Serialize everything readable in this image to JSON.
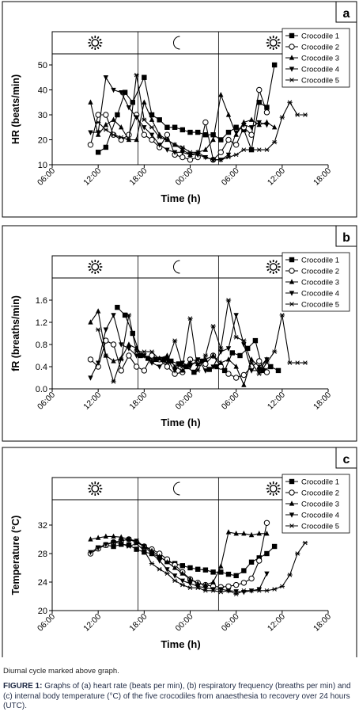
{
  "caption": {
    "note": "Diurnal cycle marked above graph.",
    "label": "FIGURE 1:",
    "text": "Graphs of (a) heart rate (beats per min), (b) respiratory frequency (breaths per min) and (c) internal body temperature (°C) of the five crocodiles from anaesthesia to recovery over 24 hours (UTC)."
  },
  "chart_data": [
    {
      "type": "line",
      "panel_label": "a",
      "xlabel": "Time (h)",
      "ylabel": "HR (beats/min)",
      "x_ticks": [
        "06:00",
        "12:00",
        "18:00",
        "00:00",
        "06:00",
        "12:00",
        "18:00"
      ],
      "x_range_hours": [
        6,
        42
      ],
      "ylim": [
        10,
        50
      ],
      "y_ticks": [
        10,
        20,
        30,
        40,
        50
      ],
      "y_tick_labels": [
        "10",
        "20",
        "30",
        "40",
        "50"
      ],
      "diurnal": [
        "sun-icon",
        "moon-icon",
        "sun-icon"
      ],
      "diurnal_bounds_hours": [
        17.2,
        27.7
      ],
      "legend_position": "top-right",
      "series": [
        {
          "name": "Crocodile 1",
          "marker": "square",
          "x": [
            12,
            13,
            14.5,
            15.5,
            16.5,
            18,
            19,
            20,
            21,
            22,
            23,
            24,
            25,
            26,
            27,
            28,
            29,
            30,
            31,
            32,
            33,
            34,
            35
          ],
          "y": [
            15,
            17,
            30,
            39,
            35,
            45,
            30,
            28,
            25,
            25,
            24,
            23,
            23,
            22,
            22,
            20,
            23,
            25,
            24,
            16,
            35,
            33,
            50
          ]
        },
        {
          "name": "Crocodile 2",
          "marker": "circle",
          "x": [
            11,
            12,
            13,
            14,
            15,
            16,
            17,
            18,
            19,
            20,
            21,
            22,
            23,
            24,
            25,
            26,
            27,
            28,
            29,
            30,
            31,
            32,
            33,
            34
          ],
          "y": [
            18,
            30,
            30,
            22,
            20,
            22,
            30,
            22,
            20,
            17,
            22,
            14,
            13,
            12,
            13,
            27,
            12,
            15,
            20,
            18,
            25,
            22,
            40,
            31
          ]
        },
        {
          "name": "Crocodile 3",
          "marker": "triangle",
          "x": [
            11,
            12,
            13,
            14,
            15,
            16,
            17,
            18,
            19,
            20,
            21,
            22,
            23,
            24,
            25,
            26,
            27,
            28,
            29,
            30,
            31,
            32,
            33,
            34,
            35
          ],
          "y": [
            35,
            22,
            26,
            28,
            25,
            20,
            20,
            35,
            28,
            22,
            20,
            18,
            16,
            14,
            15,
            16,
            20,
            38,
            30,
            22,
            27,
            28,
            26,
            27,
            25
          ]
        },
        {
          "name": "Crocodile 4",
          "marker": "triangle-down",
          "x": [
            11,
            12,
            13,
            14,
            15,
            16,
            17,
            18,
            19,
            20,
            21,
            22,
            23,
            24,
            25,
            26,
            27,
            28,
            29,
            30,
            31,
            32,
            33,
            34
          ],
          "y": [
            23,
            23,
            45,
            40,
            39,
            33,
            29,
            25,
            22,
            18,
            16,
            15,
            15,
            14,
            14,
            13,
            12,
            12,
            14,
            23,
            26,
            25,
            27,
            26
          ]
        },
        {
          "name": "Crocodile 5",
          "marker": "star",
          "x": [
            12,
            13,
            14,
            15,
            16,
            17,
            18,
            19,
            20,
            21,
            22,
            23,
            24,
            25,
            26,
            27,
            28,
            29,
            30,
            31,
            32,
            33,
            34,
            35,
            36,
            37,
            38,
            39
          ],
          "y": [
            27,
            24,
            22,
            21,
            20,
            46,
            28,
            25,
            21,
            20,
            18,
            17,
            15,
            15,
            13,
            12,
            12,
            13,
            14,
            16,
            16,
            16,
            16,
            19,
            29,
            35,
            30,
            30
          ]
        }
      ]
    },
    {
      "type": "line",
      "panel_label": "b",
      "xlabel": "Time (h)",
      "ylabel": "fR (breaths/min)",
      "x_ticks": [
        "06:00",
        "12:00",
        "18:00",
        "00:00",
        "06:00",
        "12:00",
        "18:00"
      ],
      "x_range_hours": [
        6,
        42
      ],
      "ylim": [
        0,
        1.8
      ],
      "y_ticks": [
        0,
        0.4,
        0.8,
        1.2,
        1.6
      ],
      "y_tick_labels": [
        "0.0",
        "0.4",
        "0.8",
        "1.2",
        "1.6"
      ],
      "diurnal": [
        "sun-icon",
        "moon-icon",
        "sun-icon"
      ],
      "diurnal_bounds_hours": [
        17.2,
        27.7
      ],
      "legend_position": "top-right",
      "series": [
        {
          "name": "Crocodile 1",
          "marker": "square",
          "x": [
            14.5,
            15.5,
            16.5,
            17.5,
            18.5,
            19.5,
            20.5,
            21.5,
            22.5,
            23.5,
            24.5,
            25.5,
            26.5,
            27.5,
            28.5,
            29.5,
            30.5,
            31.5,
            32.5,
            33.5,
            34.5,
            35.5
          ],
          "y": [
            1.47,
            1.33,
            1.0,
            0.6,
            0.55,
            0.53,
            0.53,
            0.5,
            0.45,
            0.4,
            0.3,
            0.5,
            0.35,
            0.4,
            0.33,
            0.65,
            0.6,
            0.73,
            0.87,
            0.33,
            0.4,
            0.33
          ]
        },
        {
          "name": "Crocodile 2",
          "marker": "circle",
          "x": [
            11,
            12,
            13,
            14,
            15,
            16,
            17,
            18,
            19,
            20,
            21,
            22,
            23,
            24,
            25,
            26,
            27,
            28,
            29,
            30,
            31,
            32,
            33,
            34
          ],
          "y": [
            0.53,
            0.4,
            0.87,
            0.8,
            0.33,
            0.6,
            0.4,
            0.33,
            0.6,
            0.53,
            0.4,
            0.27,
            0.3,
            0.53,
            0.5,
            0.45,
            0.6,
            0.4,
            0.27,
            0.2,
            0.25,
            0.4,
            0.5,
            0.3
          ]
        },
        {
          "name": "Crocodile 3",
          "marker": "triangle",
          "x": [
            11,
            12,
            13,
            14,
            15,
            16,
            17,
            18,
            19,
            20,
            21,
            22,
            23,
            24,
            25,
            26,
            27,
            28,
            29,
            30,
            31,
            32,
            33,
            34
          ],
          "y": [
            1.2,
            1.4,
            0.6,
            0.5,
            0.55,
            0.8,
            0.73,
            0.6,
            0.5,
            0.55,
            0.6,
            0.4,
            0.33,
            0.47,
            0.45,
            0.53,
            0.6,
            0.47,
            0.53,
            0.4,
            0.07,
            0.53,
            0.4,
            0.53
          ]
        },
        {
          "name": "Crocodile 4",
          "marker": "triangle-down",
          "x": [
            11,
            12,
            13,
            14,
            15,
            16,
            17,
            18,
            19,
            20,
            21,
            22,
            23,
            24,
            25,
            26,
            27,
            28,
            29,
            30,
            31,
            32,
            33,
            34
          ],
          "y": [
            0.2,
            0.47,
            1.07,
            1.33,
            0.8,
            0.73,
            0.6,
            0.6,
            0.47,
            0.4,
            0.53,
            0.33,
            0.47,
            0.4,
            0.53,
            0.33,
            0.4,
            0.67,
            0.73,
            1.33,
            0.8,
            0.33,
            0.33,
            0.53
          ]
        },
        {
          "name": "Crocodile 5",
          "marker": "star",
          "x": [
            12,
            13,
            14,
            15,
            16,
            17,
            18,
            19,
            20,
            21,
            22,
            23,
            24,
            25,
            26,
            27,
            28,
            29,
            30,
            31,
            32,
            33,
            34,
            35,
            36,
            37,
            38,
            39
          ],
          "y": [
            1.07,
            0.6,
            0.13,
            0.53,
            1.33,
            0.67,
            0.67,
            0.67,
            0.53,
            0.47,
            0.87,
            0.4,
            1.27,
            0.33,
            0.6,
            1.13,
            0.73,
            1.6,
            0.93,
            0.87,
            0.47,
            0.27,
            0.47,
            0.67,
            1.33,
            0.47,
            0.47,
            0.47
          ]
        }
      ]
    },
    {
      "type": "line",
      "panel_label": "c",
      "xlabel": "Time (h)",
      "ylabel": "Temperature (°C)",
      "x_ticks": [
        "06:00",
        "12:00",
        "18:00",
        "00:00",
        "06:00",
        "12:00",
        "18:00"
      ],
      "x_range_hours": [
        6,
        42
      ],
      "ylim": [
        20,
        34
      ],
      "y_ticks": [
        20,
        24,
        28,
        32
      ],
      "y_tick_labels": [
        "20",
        "24",
        "28",
        "32"
      ],
      "diurnal": [
        "sun-icon",
        "moon-icon",
        "sun-icon"
      ],
      "diurnal_bounds_hours": [
        17.2,
        27.7
      ],
      "legend_position": "top-right",
      "series": [
        {
          "name": "Crocodile 1",
          "marker": "square",
          "x": [
            12,
            13,
            14,
            15,
            16,
            17,
            18,
            19,
            20,
            21,
            22,
            23,
            24,
            25,
            26,
            27,
            28,
            29,
            30,
            31,
            32,
            33,
            34,
            35
          ],
          "y": [
            28.8,
            29.2,
            29.0,
            29.3,
            29.2,
            28.6,
            28.2,
            28.0,
            27.5,
            26.9,
            26.6,
            26.3,
            26.0,
            25.8,
            25.7,
            25.4,
            25.4,
            25.1,
            24.9,
            25.6,
            26.8,
            27.4,
            28.0,
            29.0
          ]
        },
        {
          "name": "Crocodile 2",
          "marker": "circle",
          "x": [
            11,
            12,
            13,
            14,
            15,
            16,
            17,
            18,
            19,
            20,
            21,
            22,
            23,
            24,
            25,
            26,
            27,
            28,
            29,
            30,
            31,
            32,
            33,
            34
          ],
          "y": [
            28.0,
            28.7,
            29.2,
            29.6,
            29.8,
            30.0,
            29.6,
            29.0,
            28.6,
            28.0,
            27.2,
            26.4,
            25.4,
            24.4,
            23.9,
            23.6,
            23.4,
            23.3,
            23.4,
            23.6,
            23.9,
            24.5,
            27.0,
            32.3
          ]
        },
        {
          "name": "Crocodile 3",
          "marker": "triangle",
          "x": [
            11,
            12,
            13,
            14,
            15,
            16,
            17,
            18,
            19,
            20,
            21,
            22,
            23,
            24,
            25,
            26,
            27,
            28,
            29,
            30,
            31,
            32,
            33,
            34
          ],
          "y": [
            30.0,
            30.2,
            30.4,
            30.4,
            30.3,
            30.0,
            29.6,
            29.0,
            28.4,
            27.6,
            26.8,
            26.0,
            25.2,
            24.4,
            23.8,
            23.6,
            24.0,
            26.2,
            31.0,
            30.8,
            30.8,
            30.6,
            30.8,
            30.8
          ]
        },
        {
          "name": "Crocodile 4",
          "marker": "triangle-down",
          "x": [
            11,
            12,
            13,
            14,
            15,
            16,
            17,
            18,
            19,
            20,
            21,
            22,
            23,
            24,
            25,
            26,
            27,
            28,
            29,
            30,
            31,
            32,
            33,
            34
          ],
          "y": [
            28.2,
            28.8,
            29.3,
            29.6,
            29.8,
            30.0,
            29.8,
            29.0,
            28.0,
            27.0,
            25.8,
            24.9,
            24.2,
            23.8,
            23.4,
            23.2,
            23.0,
            23.0,
            22.8,
            22.7,
            22.6,
            22.8,
            23.0,
            25.2
          ]
        },
        {
          "name": "Crocodile 5",
          "marker": "star",
          "x": [
            14,
            15,
            16,
            17,
            18,
            19,
            20,
            21,
            22,
            23,
            24,
            25,
            26,
            27,
            28,
            29,
            30,
            31,
            32,
            33,
            34,
            35,
            36,
            37,
            38,
            39
          ],
          "y": [
            29.6,
            29.4,
            29.0,
            29.4,
            28.4,
            26.6,
            25.8,
            25.2,
            24.2,
            23.6,
            23.2,
            23.2,
            22.8,
            22.8,
            22.6,
            22.8,
            22.3,
            22.8,
            22.8,
            22.8,
            22.8,
            23.0,
            23.4,
            25.0,
            28.0,
            29.5
          ]
        }
      ]
    }
  ]
}
